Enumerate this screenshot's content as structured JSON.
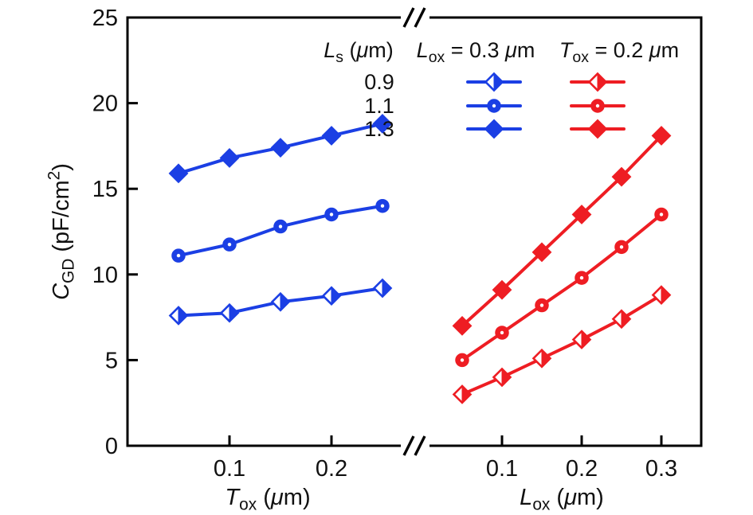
{
  "chart_data": {
    "type": "line",
    "title": "",
    "ylabel_text": "C_GD (pF/cm^2)",
    "ylabel_parts": [
      {
        "t": "C",
        "style": "it"
      },
      {
        "t": "GD",
        "style": "sub"
      },
      {
        "t": " (pF/cm",
        "style": "n"
      },
      {
        "t": "2",
        "style": "sup"
      },
      {
        "t": ")",
        "style": "n"
      }
    ],
    "ylim": [
      0,
      25
    ],
    "yticks": [
      0,
      5,
      10,
      15,
      20,
      25
    ],
    "axis_color": "#000000",
    "panels": [
      {
        "id": "Tox-panel",
        "xlabel_text": "T_ox (um)",
        "xlabel_parts": [
          {
            "t": "T",
            "style": "it"
          },
          {
            "t": "ox",
            "style": "sub"
          },
          {
            "t": " (",
            "style": "n"
          },
          {
            "t": "μ",
            "style": "it"
          },
          {
            "t": "m)",
            "style": "n"
          }
        ],
        "xlim": [
          0,
          0.275
        ],
        "xticks": [
          0.1,
          0.2
        ],
        "color": "#1b3fe4",
        "x": [
          0.05,
          0.1,
          0.15,
          0.2,
          0.25
        ],
        "series": [
          {
            "name": "0.9",
            "marker": "half-diamond",
            "values": [
              7.6,
              7.75,
              8.4,
              8.75,
              9.2
            ]
          },
          {
            "name": "1.1",
            "marker": "circle",
            "values": [
              11.1,
              11.75,
              12.8,
              13.5,
              14.0
            ]
          },
          {
            "name": "1.3",
            "marker": "diamond",
            "values": [
              15.9,
              16.8,
              17.4,
              18.1,
              18.8
            ]
          }
        ]
      },
      {
        "id": "Lox-panel",
        "xlabel_text": "L_ox (um)",
        "xlabel_parts": [
          {
            "t": "L",
            "style": "it"
          },
          {
            "t": "ox",
            "style": "sub"
          },
          {
            "t": " (",
            "style": "n"
          },
          {
            "t": "μ",
            "style": "it"
          },
          {
            "t": "m)",
            "style": "n"
          }
        ],
        "xlim": [
          0,
          0.35
        ],
        "xticks": [
          0.1,
          0.2,
          0.3
        ],
        "color": "#ee1d23",
        "x": [
          0.05,
          0.1,
          0.15,
          0.2,
          0.25,
          0.3
        ],
        "series": [
          {
            "name": "0.9",
            "marker": "half-diamond",
            "values": [
              3.0,
              4.0,
              5.1,
              6.2,
              7.4,
              8.8
            ]
          },
          {
            "name": "1.1",
            "marker": "circle",
            "values": [
              5.0,
              6.6,
              8.2,
              9.8,
              11.6,
              13.5
            ]
          },
          {
            "name": "1.3",
            "marker": "diamond",
            "values": [
              7.0,
              9.1,
              11.3,
              13.5,
              15.7,
              18.1
            ]
          }
        ]
      }
    ],
    "legend": {
      "series_header_text": "Ls (um)",
      "series_header_parts": [
        {
          "t": "L",
          "style": "it"
        },
        {
          "t": "s",
          "style": "sub"
        },
        {
          "t": " (",
          "style": "n"
        },
        {
          "t": "μ",
          "style": "it"
        },
        {
          "t": "m)",
          "style": "n"
        }
      ],
      "col_headers": [
        {
          "text": "Lox = 0.3 um",
          "parts": [
            {
              "t": "L",
              "style": "it"
            },
            {
              "t": "ox",
              "style": "sub"
            },
            {
              "t": " = 0.3 ",
              "style": "n"
            },
            {
              "t": "μ",
              "style": "it"
            },
            {
              "t": "m",
              "style": "n"
            }
          ]
        },
        {
          "text": "Tox = 0.2 um",
          "parts": [
            {
              "t": "T",
              "style": "it"
            },
            {
              "t": "ox",
              "style": "sub"
            },
            {
              "t": " = 0.2 ",
              "style": "n"
            },
            {
              "t": "μ",
              "style": "it"
            },
            {
              "t": "m",
              "style": "n"
            }
          ]
        }
      ],
      "rows": [
        "0.9",
        "1.1",
        "1.3"
      ],
      "row_markers": [
        "half-diamond",
        "circle",
        "diamond"
      ]
    }
  }
}
